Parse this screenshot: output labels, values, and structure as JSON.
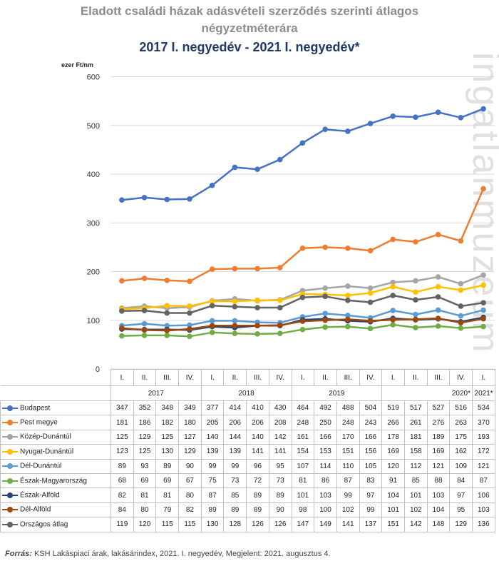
{
  "title_line1": "Eladott családi házak adásvételi szerződés szerinti átlagos",
  "title_line2": "négyzetméterára",
  "title_line3": "2017 I. negyedév - 2021 I. negyedév*",
  "watermark": "ingatlanmuzeum",
  "source": {
    "label": "Forrás:",
    "text": " KSH Lakáspiaci árak, lakásárindex, 2021. I. negyedév, Megjelent: 2021. augusztus 4."
  },
  "chart_data": {
    "type": "line",
    "ylabel": "ezer Ft/nm",
    "ylim": [
      0,
      600
    ],
    "yticks": [
      "0",
      "100",
      "200",
      "300",
      "400",
      "500",
      "600"
    ],
    "grid": true,
    "quarters": [
      "I.",
      "II.",
      "III.",
      "IV.",
      "I.",
      "II.",
      "III.",
      "IV.",
      "I.",
      "II.",
      "III.",
      "IV.",
      "I.",
      "II.",
      "III.",
      "IV.",
      "I."
    ],
    "years": [
      "2017",
      "2018",
      "2019",
      "2020*",
      "2021*"
    ],
    "series": [
      {
        "name": "Budapest",
        "color": "#4472c4",
        "values": [
          347,
          352,
          348,
          349,
          377,
          414,
          410,
          430,
          464,
          492,
          488,
          504,
          519,
          517,
          527,
          516,
          534
        ]
      },
      {
        "name": "Pest megye",
        "color": "#ed7d31",
        "values": [
          181,
          186,
          182,
          180,
          205,
          206,
          206,
          208,
          248,
          250,
          248,
          243,
          266,
          261,
          276,
          263,
          370
        ]
      },
      {
        "name": "Közép-Dunántúl",
        "color": "#a5a5a5",
        "values": [
          125,
          129,
          125,
          127,
          140,
          144,
          140,
          142,
          161,
          166,
          170,
          166,
          178,
          181,
          189,
          175,
          193
        ]
      },
      {
        "name": "Nyugat-Dunántúl",
        "color": "#ffc000",
        "values": [
          123,
          125,
          130,
          129,
          139,
          139,
          141,
          141,
          154,
          153,
          151,
          156,
          169,
          158,
          169,
          162,
          172
        ]
      },
      {
        "name": "Dél-Dunántúl",
        "color": "#5b9bd5",
        "values": [
          89,
          93,
          89,
          90,
          99,
          99,
          96,
          95,
          107,
          114,
          110,
          105,
          120,
          112,
          121,
          109,
          121
        ]
      },
      {
        "name": "Észak-Magyarország",
        "color": "#70ad47",
        "values": [
          68,
          69,
          69,
          67,
          75,
          73,
          72,
          73,
          81,
          86,
          87,
          83,
          91,
          85,
          88,
          84,
          87
        ]
      },
      {
        "name": "Észak-Alföld",
        "color": "#264478",
        "values": [
          82,
          81,
          81,
          80,
          87,
          85,
          89,
          89,
          101,
          103,
          99,
          97,
          104,
          101,
          103,
          97,
          106
        ]
      },
      {
        "name": "Dél-Alföld",
        "color": "#9e480e",
        "values": [
          84,
          80,
          79,
          82,
          89,
          89,
          89,
          90,
          98,
          100,
          102,
          99,
          101,
          102,
          104,
          95,
          103
        ]
      },
      {
        "name": "Országos átlag",
        "color": "#636363",
        "values": [
          119,
          120,
          115,
          115,
          130,
          128,
          126,
          126,
          147,
          149,
          141,
          137,
          151,
          142,
          148,
          129,
          136
        ]
      }
    ]
  }
}
